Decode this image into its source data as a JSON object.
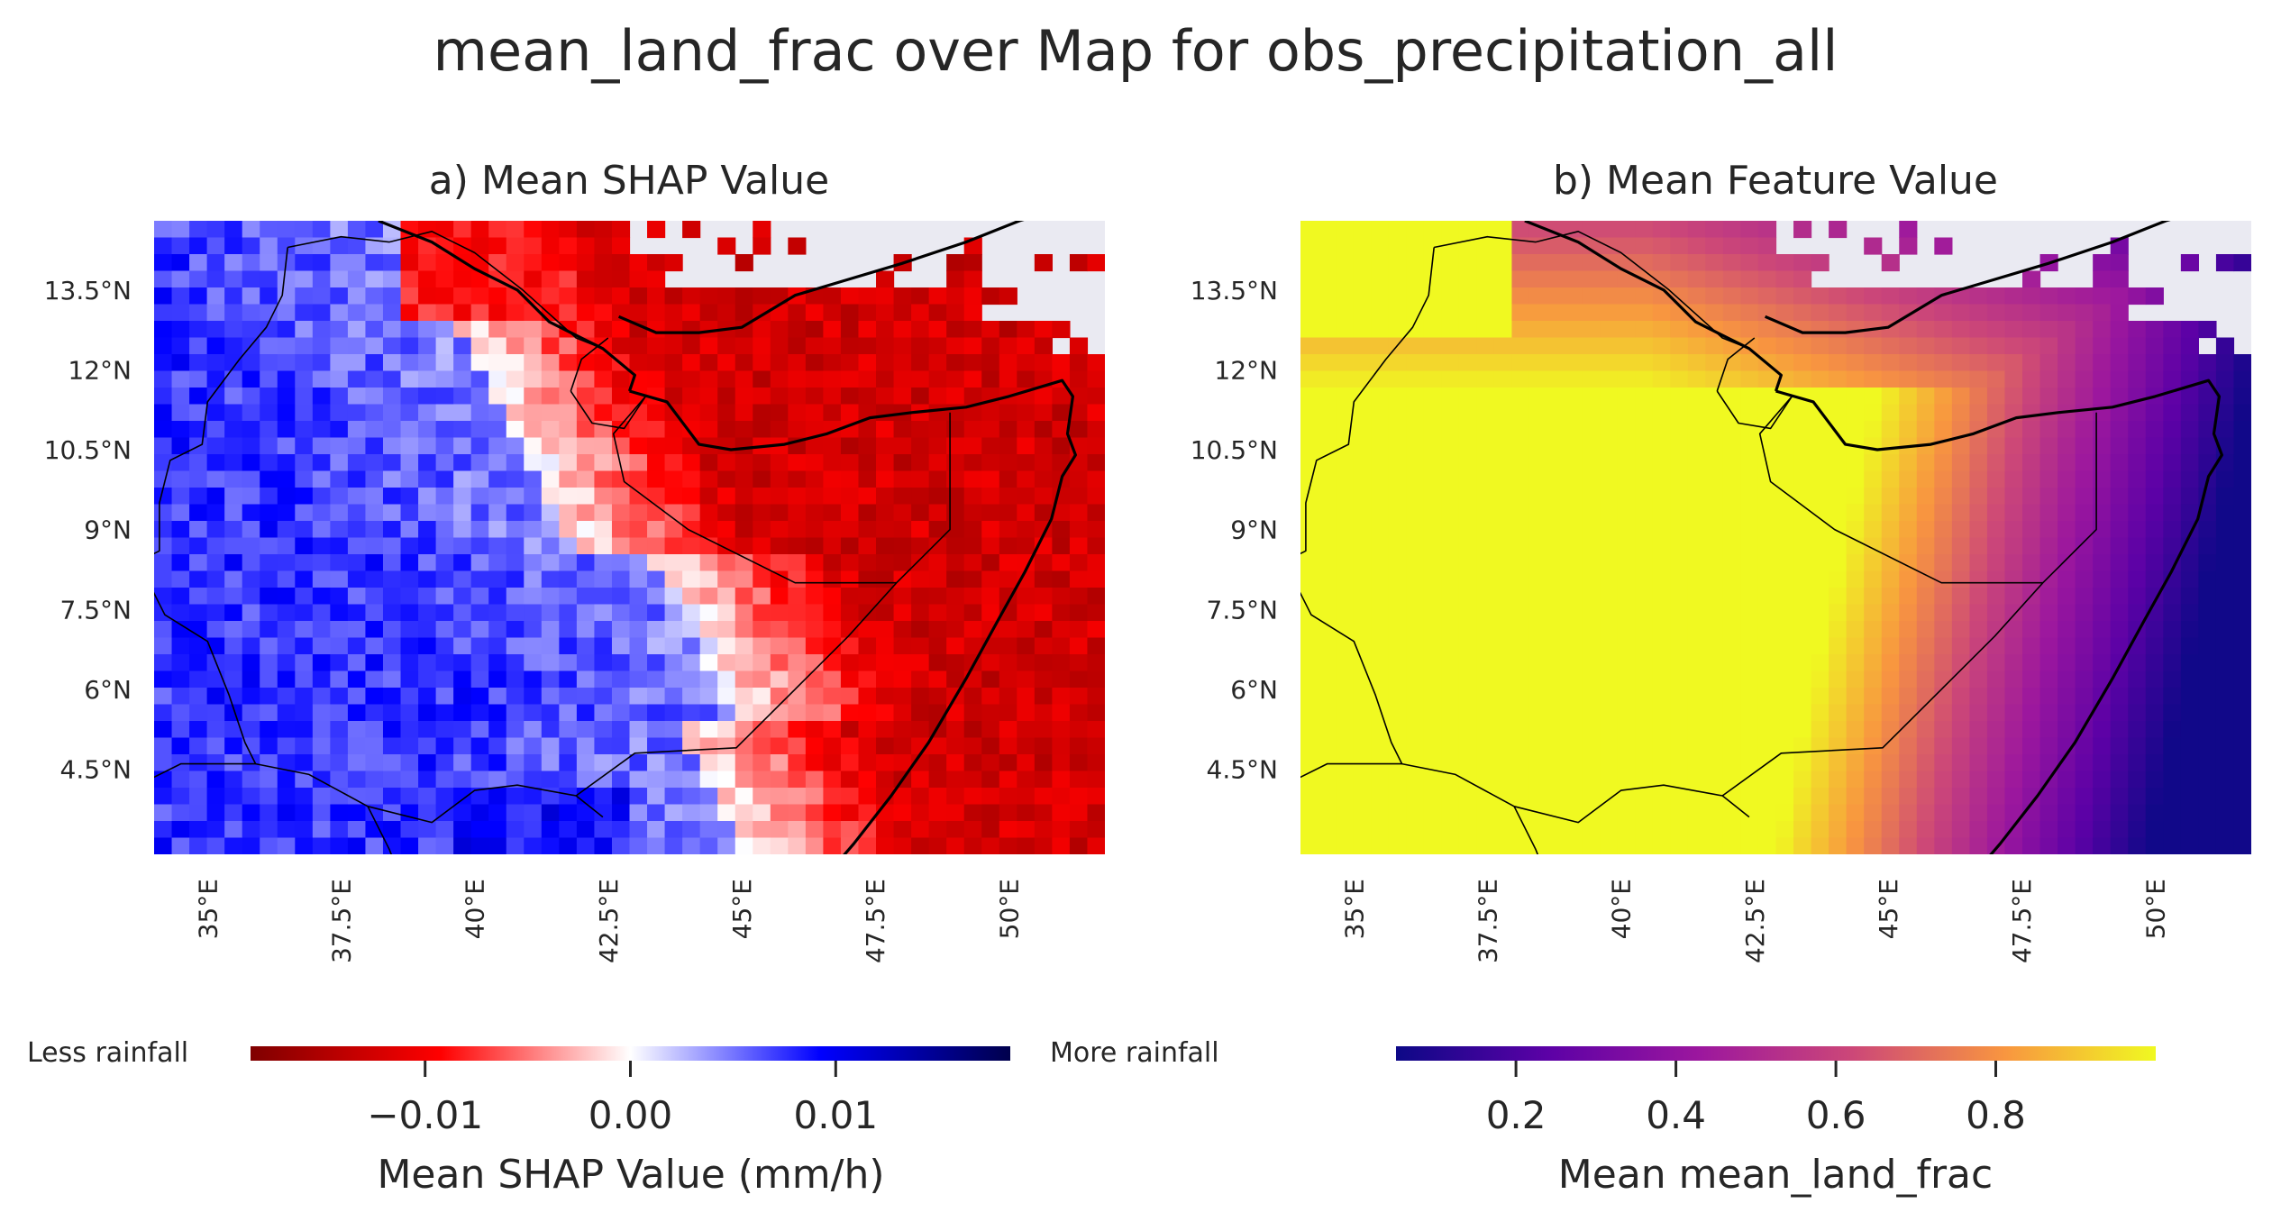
{
  "figure": {
    "title": "mean_land_frac over Map for obs_precipitation_all"
  },
  "chart_data": [
    {
      "type": "heatmap",
      "title": "a) Mean SHAP Value",
      "x_ticks": [
        "35°E",
        "37.5°E",
        "40°E",
        "42.5°E",
        "45°E",
        "47.5°E",
        "50°E"
      ],
      "x_tick_values": [
        35,
        37.5,
        40,
        42.5,
        45,
        47.5,
        50
      ],
      "y_ticks": [
        "4.5°N",
        "6°N",
        "7.5°N",
        "9°N",
        "10.5°N",
        "12°N",
        "13.5°N"
      ],
      "y_tick_values": [
        4.5,
        6,
        7.5,
        9,
        10.5,
        12,
        13.5
      ],
      "xlim": [
        34,
        51.8
      ],
      "ylim": [
        2.9,
        14.8
      ],
      "colormap": "seismic_r",
      "colors": {
        "negative": "#ff0000",
        "zero": "#ffffff",
        "positive": "#0000ff",
        "missing": "#eaeaf2"
      },
      "colorbar": {
        "label": "Mean SHAP Value (mm/h)",
        "range": [
          -0.0185,
          0.0185
        ],
        "ticks": [
          -0.01,
          0.0,
          0.01
        ],
        "tick_labels": [
          "−0.01",
          "0.00",
          "0.01"
        ],
        "left_label": "Less rainfall",
        "right_label": "More rainfall"
      }
    },
    {
      "type": "heatmap",
      "title": "b) Mean Feature Value",
      "x_ticks": [
        "35°E",
        "37.5°E",
        "40°E",
        "42.5°E",
        "45°E",
        "47.5°E",
        "50°E"
      ],
      "x_tick_values": [
        35,
        37.5,
        40,
        42.5,
        45,
        47.5,
        50
      ],
      "y_ticks": [
        "4.5°N",
        "6°N",
        "7.5°N",
        "9°N",
        "10.5°N",
        "12°N",
        "13.5°N"
      ],
      "y_tick_values": [
        4.5,
        6,
        7.5,
        9,
        10.5,
        12,
        13.5
      ],
      "xlim": [
        34,
        51.8
      ],
      "ylim": [
        2.9,
        14.8
      ],
      "colormap": "plasma",
      "colors": {
        "low": "#0d0887",
        "mid": "#cc4778",
        "high": "#f0f921",
        "missing": "#eaeaf2"
      },
      "colorbar": {
        "label": "Mean mean_land_frac",
        "range": [
          0.05,
          1.0
        ],
        "ticks": [
          0.2,
          0.4,
          0.6,
          0.8
        ],
        "tick_labels": [
          "0.2",
          "0.4",
          "0.6",
          "0.8"
        ]
      }
    }
  ]
}
